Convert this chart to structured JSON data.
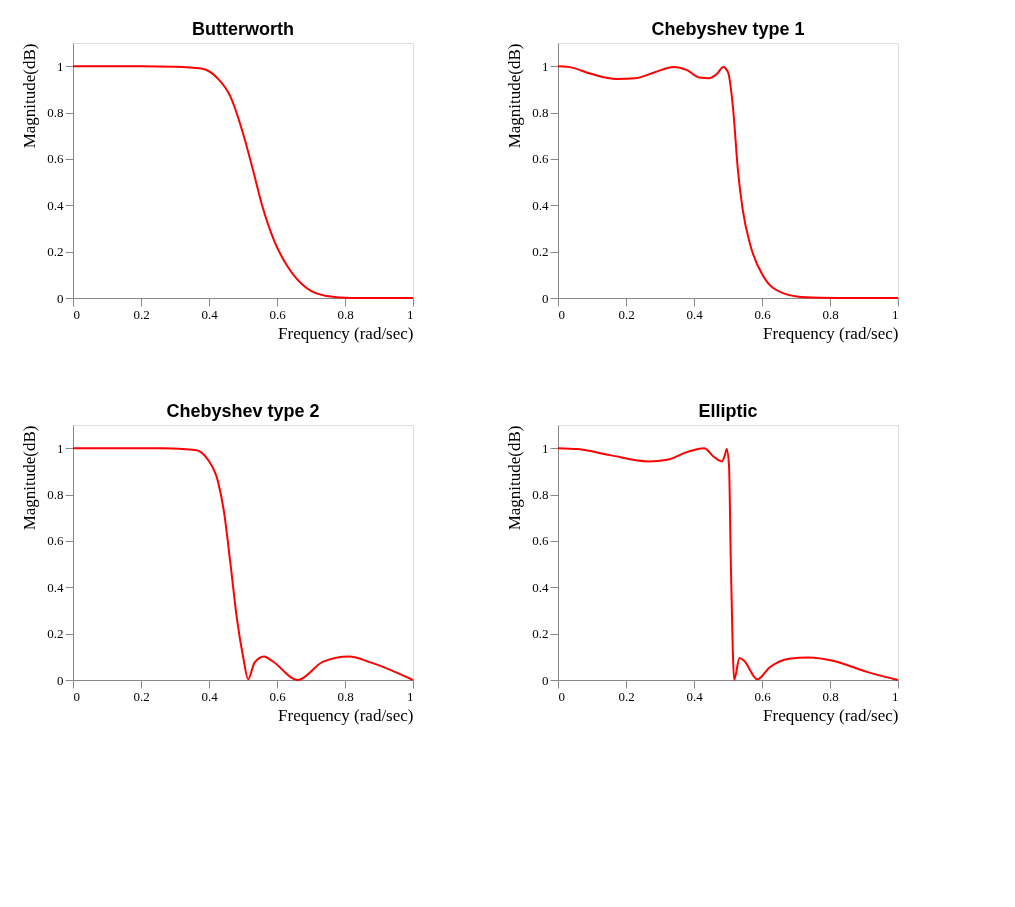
{
  "chart_data": [
    {
      "type": "line",
      "title": "Butterworth",
      "xlabel": "Frequency (rad/sec)",
      "ylabel": "Magnitude(dB)",
      "xlim": [
        0,
        1
      ],
      "ylim": [
        0,
        1.1
      ],
      "xticks": [
        0,
        0.2,
        0.4,
        0.6,
        0.8,
        1
      ],
      "yticks": [
        0,
        0.2,
        0.4,
        0.6,
        0.8,
        1
      ],
      "grid": false,
      "x": [
        0,
        0.1,
        0.2,
        0.3,
        0.378,
        0.425,
        0.463,
        0.5,
        0.529,
        0.557,
        0.594,
        0.632,
        0.688,
        0.745,
        0.82,
        1
      ],
      "series": [
        {
          "color": "#ff0000",
          "values": [
            1,
            1,
            1,
            0.998,
            0.99,
            0.948,
            0.869,
            0.711,
            0.554,
            0.396,
            0.239,
            0.134,
            0.042,
            0.009,
            0,
            0
          ]
        }
      ]
    },
    {
      "type": "line",
      "title": "Chebyshev type 1",
      "xlabel": "Frequency (rad/sec)",
      "ylabel": "Magnitude(dB)",
      "xlim": [
        0,
        1
      ],
      "ylim": [
        0,
        1.1
      ],
      "xticks": [
        0,
        0.2,
        0.4,
        0.6,
        0.8,
        1
      ],
      "yticks": [
        0,
        0.2,
        0.4,
        0.6,
        0.8,
        1
      ],
      "grid": false,
      "x": [
        0,
        0.031,
        0.097,
        0.172,
        0.228,
        0.285,
        0.341,
        0.378,
        0.416,
        0.444,
        0.468,
        0.486,
        0.5,
        0.515,
        0.529,
        0.543,
        0.566,
        0.604,
        0.66,
        0.726,
        0.82,
        1
      ],
      "series": [
        {
          "color": "#ff0000",
          "values": [
            1,
            0.997,
            0.967,
            0.945,
            0.948,
            0.974,
            0.997,
            0.984,
            0.951,
            0.948,
            0.967,
            0.997,
            0.974,
            0.816,
            0.554,
            0.383,
            0.226,
            0.094,
            0.022,
            0.003,
            0,
            0
          ]
        }
      ]
    },
    {
      "type": "line",
      "title": "Chebyshev type 2",
      "xlabel": "Frequency (rad/sec)",
      "ylabel": "Magnitude(dB)",
      "xlim": [
        0,
        1
      ],
      "ylim": [
        0,
        1.1
      ],
      "xticks": [
        0,
        0.2,
        0.4,
        0.6,
        0.8,
        1
      ],
      "yticks": [
        0,
        0.2,
        0.4,
        0.6,
        0.8,
        1
      ],
      "grid": false,
      "x": [
        0,
        0.266,
        0.36,
        0.397,
        0.426,
        0.444,
        0.463,
        0.482,
        0.501,
        0.515,
        0.534,
        0.562,
        0.586,
        0.661,
        0.736,
        0.812,
        0.877,
        1
      ],
      "series": [
        {
          "color": "#ff0000",
          "values": [
            1,
            1,
            0.992,
            0.95,
            0.858,
            0.726,
            0.503,
            0.266,
            0.095,
            0.003,
            0.075,
            0.101,
            0.082,
            0,
            0.079,
            0.101,
            0.075,
            0
          ]
        }
      ]
    },
    {
      "type": "line",
      "title": "Elliptic",
      "xlabel": "Frequency (rad/sec)",
      "ylabel": "Magnitude(dB)",
      "xlim": [
        0,
        1
      ],
      "ylim": [
        0,
        1.1
      ],
      "xticks": [
        0,
        0.2,
        0.4,
        0.6,
        0.8,
        1
      ],
      "yticks": [
        0,
        0.2,
        0.4,
        0.6,
        0.8,
        1
      ],
      "grid": false,
      "x": [
        0,
        0.058,
        0.153,
        0.266,
        0.322,
        0.379,
        0.43,
        0.458,
        0.482,
        0.492,
        0.496,
        0.503,
        0.508,
        0.514,
        0.518,
        0.534,
        0.548,
        0.586,
        0.623,
        0.68,
        0.736,
        0.812,
        0.906,
        1
      ],
      "series": [
        {
          "color": "#ff0000",
          "values": [
            1,
            0.996,
            0.97,
            0.943,
            0.95,
            0.983,
            1,
            0.963,
            0.943,
            0.976,
            0.996,
            0.924,
            0.529,
            0.134,
            0,
            0.095,
            0.082,
            0.003,
            0.055,
            0.092,
            0.097,
            0.082,
            0.036,
            0
          ]
        }
      ]
    }
  ]
}
